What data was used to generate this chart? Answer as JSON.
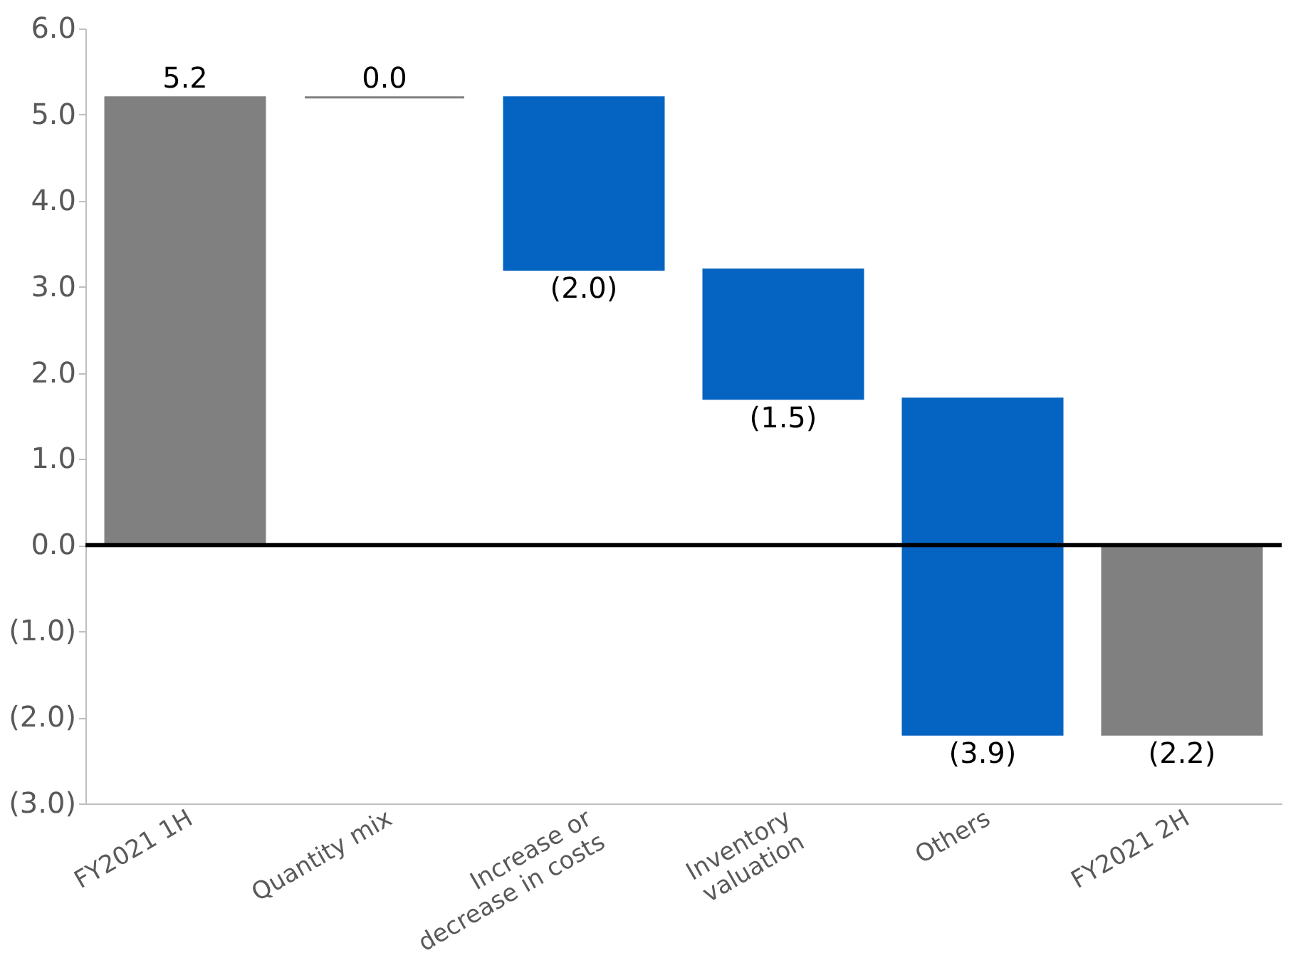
{
  "chart_data": {
    "type": "bar",
    "categories": [
      "FY2021 1H",
      "Quantity mix",
      "Increase or\ndecrease in costs",
      "Inventory\nvaluation",
      "Others",
      "FY2021 2H"
    ],
    "values": [
      5.2,
      0.0,
      -2.0,
      -1.5,
      -3.9,
      -2.2
    ],
    "base": [
      0,
      5.2,
      5.2,
      3.2,
      1.7,
      0
    ],
    "colors": [
      "#808080",
      "#808080",
      "#0563c1",
      "#0563c1",
      "#0563c1",
      "#808080"
    ],
    "value_labels": [
      "5.2",
      "0.0",
      "(2.0)",
      "(1.5)",
      "(3.9)",
      "(2.2)"
    ],
    "ylim": [
      -3.0,
      6.0
    ],
    "yticks": [
      {
        "value": -3,
        "label": "(3.0)"
      },
      {
        "value": -2,
        "label": "(2.0)"
      },
      {
        "value": -1,
        "label": "(1.0)"
      },
      {
        "value": 0,
        "label": "0.0"
      },
      {
        "value": 1,
        "label": "1.0"
      },
      {
        "value": 2,
        "label": "2.0"
      },
      {
        "value": 3,
        "label": "3.0"
      },
      {
        "value": 4,
        "label": "4.0"
      },
      {
        "value": 5,
        "label": "5.0"
      },
      {
        "value": 6,
        "label": "6.0"
      }
    ],
    "ref_lines": [
      {
        "axis": "y",
        "value": 0,
        "color": "#000000"
      }
    ],
    "grid": false
  }
}
